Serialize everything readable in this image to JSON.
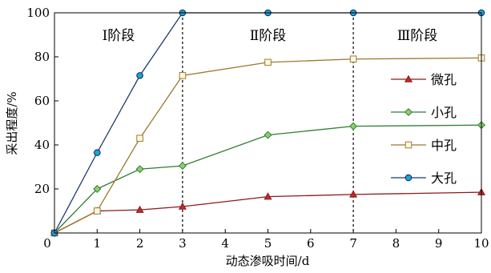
{
  "chart_data": {
    "type": "line",
    "xlabel": "动态渗吸时间/d",
    "ylabel": "采出程度/%",
    "xlim": [
      0,
      10
    ],
    "ylim": [
      0,
      100
    ],
    "xticks": [
      "0",
      "1",
      "2",
      "3",
      "4",
      "5",
      "6",
      "7",
      "8",
      "9",
      "10"
    ],
    "yticks": [
      "20",
      "40",
      "60",
      "80",
      "100"
    ],
    "grid": false,
    "stage_dividers": [
      3,
      7
    ],
    "stages": [
      {
        "label": "Ⅰ阶段",
        "x": 1.5
      },
      {
        "label": "Ⅱ阶段",
        "x": 5
      },
      {
        "label": "Ⅲ阶段",
        "x": 8.5
      }
    ],
    "legend_position": "right",
    "series": [
      {
        "name": "微孔",
        "color": "#8b1a1a",
        "marker": "triangle",
        "x": [
          0,
          1,
          2,
          3,
          5,
          7,
          10
        ],
        "y": [
          0,
          10,
          10.5,
          12,
          16.5,
          17.5,
          18.5
        ]
      },
      {
        "name": "小孔",
        "color": "#2e7d32",
        "marker": "diamond",
        "x": [
          0,
          1,
          2,
          3,
          5,
          7,
          10
        ],
        "y": [
          0,
          20,
          29,
          30.5,
          44.5,
          48.5,
          49
        ]
      },
      {
        "name": "中孔",
        "color": "#9c7a2e",
        "marker": "square",
        "x": [
          0,
          1,
          2,
          3,
          5,
          7,
          10
        ],
        "y": [
          0,
          10,
          43,
          71.5,
          77.5,
          79,
          79.5
        ]
      },
      {
        "name": "大孔",
        "color": "#1e3a6e",
        "marker": "circle",
        "x": [
          0,
          1,
          2,
          3,
          5,
          7,
          10
        ],
        "y": [
          0,
          36.5,
          71.5,
          100,
          100,
          100,
          100
        ]
      }
    ]
  }
}
